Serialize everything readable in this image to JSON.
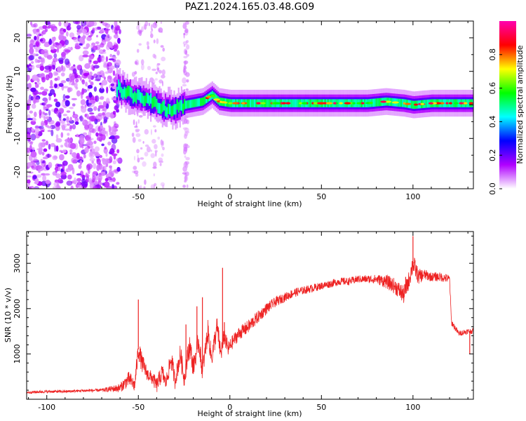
{
  "title": "PAZ1.2024.165.03.48.G09",
  "colors": {
    "snr_line": "#ee2222",
    "axis": "#000000"
  },
  "chart_data": [
    {
      "type": "heatmap",
      "xlabel": "Height of straight line (km)",
      "ylabel": "Frequency (Hz)",
      "xlim": [
        -111,
        133
      ],
      "ylim": [
        -25,
        25
      ],
      "xticks": [
        -100,
        -50,
        0,
        50,
        100
      ],
      "yticks": [
        -20,
        -10,
        0,
        10,
        20
      ],
      "xtick_labels": [
        "-100",
        "-50",
        "0",
        "50",
        "100"
      ],
      "ytick_labels": [
        "-20",
        "-10",
        "0",
        "10",
        "20"
      ],
      "ridge": {
        "x": [
          -62,
          -58,
          -54,
          -50,
          -45,
          -40,
          -36,
          -30,
          -25,
          -20,
          -15,
          -10,
          -6,
          0,
          10,
          20,
          40,
          60,
          75,
          85,
          95,
          100,
          110,
          120,
          133
        ],
        "y": [
          5,
          4,
          3,
          3,
          1.5,
          0,
          -1,
          -1,
          0,
          0.5,
          1,
          3,
          1,
          0.5,
          0.5,
          0.5,
          0.5,
          0.5,
          0.5,
          1,
          0.5,
          0,
          0.5,
          0.5,
          0.5
        ]
      },
      "noise_region_x": [
        -111,
        -60
      ],
      "colorbar": {
        "label": "Normalized spectral amplitude",
        "ticks": [
          0.0,
          0.2,
          0.4,
          0.6,
          0.8
        ],
        "tick_labels": [
          "0.0",
          "0.2",
          "0.4",
          "0.6",
          "0.8"
        ],
        "range": [
          0,
          1
        ],
        "colormap": [
          "#ffffff",
          "#b000ff",
          "#0000ff",
          "#00ffff",
          "#00ff00",
          "#ffff00",
          "#ff0000",
          "#ff00b0"
        ]
      }
    },
    {
      "type": "line",
      "xlabel": "Height of straight line (km)",
      "ylabel": "SNR (10 * v/v)",
      "xlim": [
        -111,
        133
      ],
      "ylim": [
        0,
        3700
      ],
      "xticks": [
        -100,
        -50,
        0,
        50,
        100
      ],
      "yticks": [
        1000,
        2000,
        3000
      ],
      "xtick_labels": [
        "-100",
        "-50",
        "0",
        "50",
        "100"
      ],
      "ytick_labels": [
        "1000",
        "2000",
        "3000"
      ],
      "series": [
        {
          "x": [
            -111,
            -100,
            -90,
            -80,
            -70,
            -60,
            -55,
            -52,
            -50,
            -48,
            -45,
            -42,
            -40,
            -37,
            -35,
            -32,
            -30,
            -27,
            -25,
            -22,
            -20,
            -17,
            -15,
            -12,
            -10,
            -7,
            -5,
            -3,
            -1,
            2,
            5,
            10,
            15,
            20,
            25,
            30,
            35,
            40,
            45,
            50,
            55,
            60,
            65,
            70,
            75,
            80,
            85,
            90,
            95,
            98,
            100,
            103,
            106,
            110,
            115,
            120,
            121,
            125,
            130,
            133
          ],
          "y": [
            150,
            170,
            170,
            190,
            200,
            250,
            450,
            300,
            1100,
            800,
            550,
            450,
            300,
            600,
            350,
            900,
            400,
            1000,
            450,
            1200,
            700,
            1300,
            600,
            1500,
            900,
            1600,
            1000,
            1400,
            1100,
            1300,
            1450,
            1600,
            1800,
            2000,
            2150,
            2250,
            2350,
            2400,
            2450,
            2500,
            2550,
            2600,
            2600,
            2650,
            2650,
            2650,
            2600,
            2500,
            2300,
            2650,
            3000,
            2700,
            2750,
            2700,
            2700,
            2650,
            1700,
            1450,
            1500,
            1500
          ],
          "noise": [
            60,
            60,
            60,
            60,
            70,
            200,
            350,
            300,
            450,
            450,
            300,
            300,
            350,
            400,
            300,
            500,
            350,
            500,
            400,
            550,
            450,
            500,
            400,
            500,
            450,
            500,
            450,
            400,
            350,
            300,
            300,
            300,
            280,
            250,
            220,
            200,
            200,
            180,
            180,
            170,
            170,
            170,
            170,
            170,
            170,
            200,
            300,
            350,
            400,
            400,
            450,
            350,
            250,
            200,
            200,
            200,
            150,
            120,
            120,
            120
          ],
          "spikes": [
            [
              -50,
              2200
            ],
            [
              -24,
              1650
            ],
            [
              -18,
              2050
            ],
            [
              -15,
              2250
            ],
            [
              -4,
              2900
            ],
            [
              -3,
              1700
            ],
            [
              100,
              3600
            ],
            [
              96,
              2700
            ],
            [
              131,
              1000
            ]
          ]
        }
      ]
    }
  ]
}
